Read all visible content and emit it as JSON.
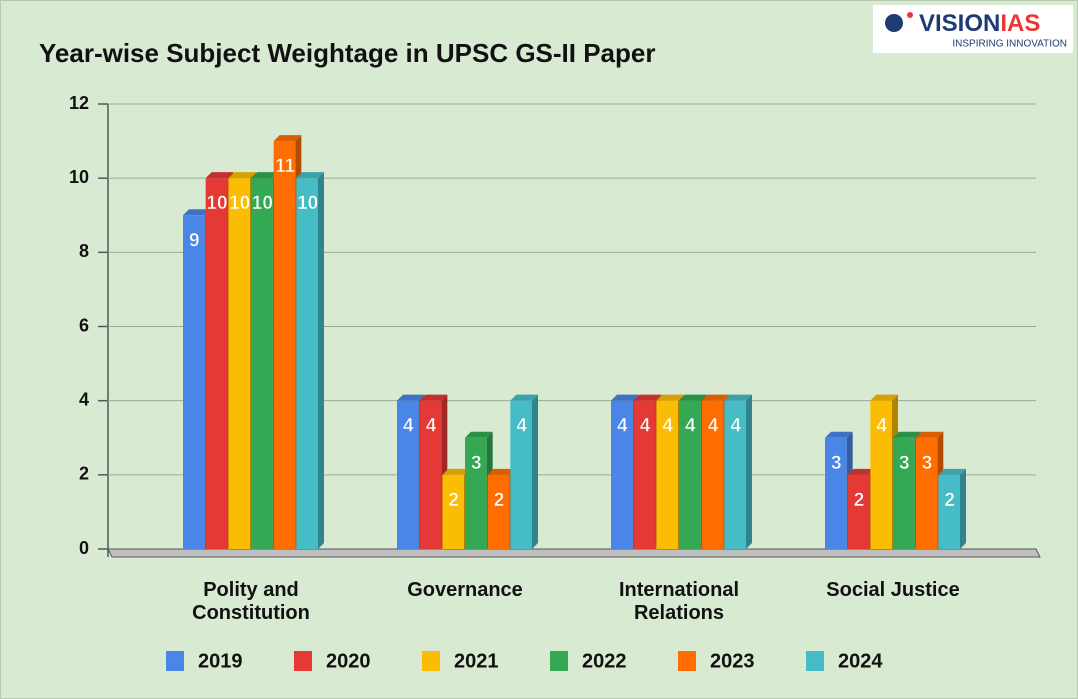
{
  "logo": {
    "parts": [
      "VISION",
      "IAS"
    ],
    "tagline": "INSPIRING INNOVATION"
  },
  "chart_data": {
    "type": "bar",
    "title": "Year-wise Subject Weightage in UPSC GS-II Paper",
    "categories": [
      "Polity and Constitution",
      "Governance",
      "International Relations",
      "Social Justice"
    ],
    "series": [
      {
        "name": "2019",
        "color": "#4a86e8",
        "values": [
          9,
          4,
          4,
          3
        ]
      },
      {
        "name": "2020",
        "color": "#e53935",
        "values": [
          10,
          4,
          4,
          2
        ]
      },
      {
        "name": "2021",
        "color": "#fbbc04",
        "values": [
          10,
          2,
          4,
          4
        ]
      },
      {
        "name": "2022",
        "color": "#34a853",
        "values": [
          10,
          3,
          4,
          3
        ]
      },
      {
        "name": "2023",
        "color": "#ff6d01",
        "values": [
          11,
          2,
          4,
          3
        ]
      },
      {
        "name": "2024",
        "color": "#46bdc6",
        "values": [
          10,
          4,
          4,
          2
        ]
      }
    ],
    "ylim": [
      0,
      12
    ],
    "yticks": [
      0,
      2,
      4,
      6,
      8,
      10,
      12
    ],
    "grid": true,
    "legend": "bottom"
  }
}
